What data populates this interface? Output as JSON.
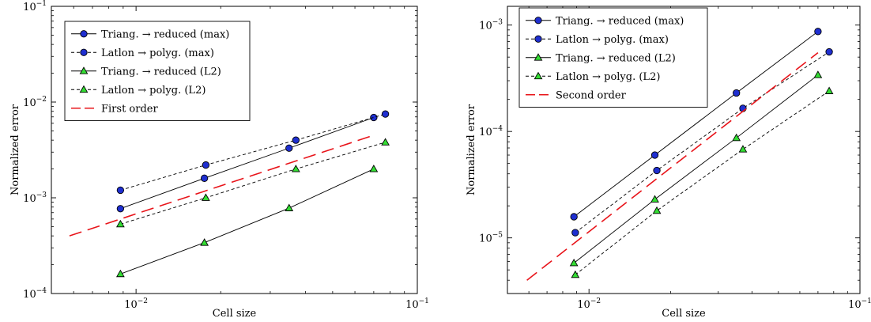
{
  "chart_data": [
    {
      "type": "line",
      "xscale": "log",
      "yscale": "log",
      "xlim": [
        0.005,
        0.1
      ],
      "ylim": [
        0.0001,
        0.1
      ],
      "xlabel": "Cell size",
      "ylabel": "Normalized error",
      "grid": false,
      "legend_position": "top-left",
      "xticks": [
        {
          "value": 0.01,
          "mant": "10",
          "exp": "−2"
        },
        {
          "value": 0.1,
          "mant": "10",
          "exp": "−1"
        }
      ],
      "yticks": [
        {
          "value": 0.0001,
          "mant": "10",
          "exp": "−4"
        },
        {
          "value": 0.001,
          "mant": "10",
          "exp": "−3"
        },
        {
          "value": 0.01,
          "mant": "10",
          "exp": "−2"
        },
        {
          "value": 0.1,
          "mant": "10",
          "exp": "−1"
        }
      ],
      "series": [
        {
          "name": "Triang. → reduced (max)",
          "marker": "circle",
          "dash": "solid",
          "color": "#000000",
          "marker_color": "#1f2fd0",
          "x": [
            0.0088,
            0.0175,
            0.035,
            0.07
          ],
          "y": [
            0.00077,
            0.0016,
            0.0033,
            0.0069
          ]
        },
        {
          "name": "Latlon → polyg. (max)",
          "marker": "circle",
          "dash": "dashed",
          "color": "#000000",
          "marker_color": "#1f2fd0",
          "x": [
            0.0088,
            0.0177,
            0.037,
            0.077
          ],
          "y": [
            0.0012,
            0.0022,
            0.004,
            0.0075
          ]
        },
        {
          "name": "Triang. → reduced (L2)",
          "marker": "triangle",
          "dash": "solid",
          "color": "#000000",
          "marker_color": "#33dd33",
          "x": [
            0.0088,
            0.0175,
            0.035,
            0.07
          ],
          "y": [
            0.00016,
            0.00034,
            0.00078,
            0.002
          ]
        },
        {
          "name": "Latlon → polyg. (L2)",
          "marker": "triangle",
          "dash": "dashed",
          "color": "#000000",
          "marker_color": "#33dd33",
          "x": [
            0.0088,
            0.0177,
            0.037,
            0.077
          ],
          "y": [
            0.00053,
            0.001,
            0.002,
            0.0038
          ]
        },
        {
          "name": "First order",
          "marker": "none",
          "dash": "longdash",
          "color": "#e8141a",
          "x": [
            0.0058,
            0.07
          ],
          "y": [
            0.0004,
            0.0045
          ]
        }
      ]
    },
    {
      "type": "line",
      "xscale": "log",
      "yscale": "log",
      "xlim": [
        0.005,
        0.1
      ],
      "ylim": [
        3e-06,
        0.0015
      ],
      "xlabel": "Cell size",
      "ylabel": "Normalized error",
      "grid": false,
      "legend_position": "top-left",
      "xticks": [
        {
          "value": 0.01,
          "mant": "10",
          "exp": "−2"
        },
        {
          "value": 0.1,
          "mant": "10",
          "exp": "−1"
        }
      ],
      "yticks": [
        {
          "value": 1e-05,
          "mant": "10",
          "exp": "−5"
        },
        {
          "value": 0.0001,
          "mant": "10",
          "exp": "−4"
        },
        {
          "value": 0.001,
          "mant": "10",
          "exp": "−3"
        }
      ],
      "series": [
        {
          "name": "Triang. → reduced (max)",
          "marker": "circle",
          "dash": "solid",
          "color": "#000000",
          "marker_color": "#1f2fd0",
          "x": [
            0.0088,
            0.0175,
            0.035,
            0.07
          ],
          "y": [
            1.58e-05,
            6e-05,
            0.00023,
            0.00087
          ]
        },
        {
          "name": "Latlon → polyg. (max)",
          "marker": "circle",
          "dash": "dashed",
          "color": "#000000",
          "marker_color": "#1f2fd0",
          "x": [
            0.0089,
            0.0178,
            0.037,
            0.077
          ],
          "y": [
            1.12e-05,
            4.3e-05,
            0.000165,
            0.00056
          ]
        },
        {
          "name": "Triang. → reduced (L2)",
          "marker": "triangle",
          "dash": "solid",
          "color": "#000000",
          "marker_color": "#33dd33",
          "x": [
            0.0088,
            0.0175,
            0.035,
            0.07
          ],
          "y": [
            5.8e-06,
            2.3e-05,
            8.7e-05,
            0.00034
          ]
        },
        {
          "name": "Latlon → polyg. (L2)",
          "marker": "triangle",
          "dash": "dashed",
          "color": "#000000",
          "marker_color": "#33dd33",
          "x": [
            0.0089,
            0.0178,
            0.037,
            0.077
          ],
          "y": [
            4.5e-06,
            1.8e-05,
            6.8e-05,
            0.00024
          ]
        },
        {
          "name": "Second order",
          "marker": "none",
          "dash": "longdash",
          "color": "#e8141a",
          "x": [
            0.0059,
            0.07
          ],
          "y": [
            4e-06,
            0.00055
          ]
        }
      ]
    }
  ]
}
